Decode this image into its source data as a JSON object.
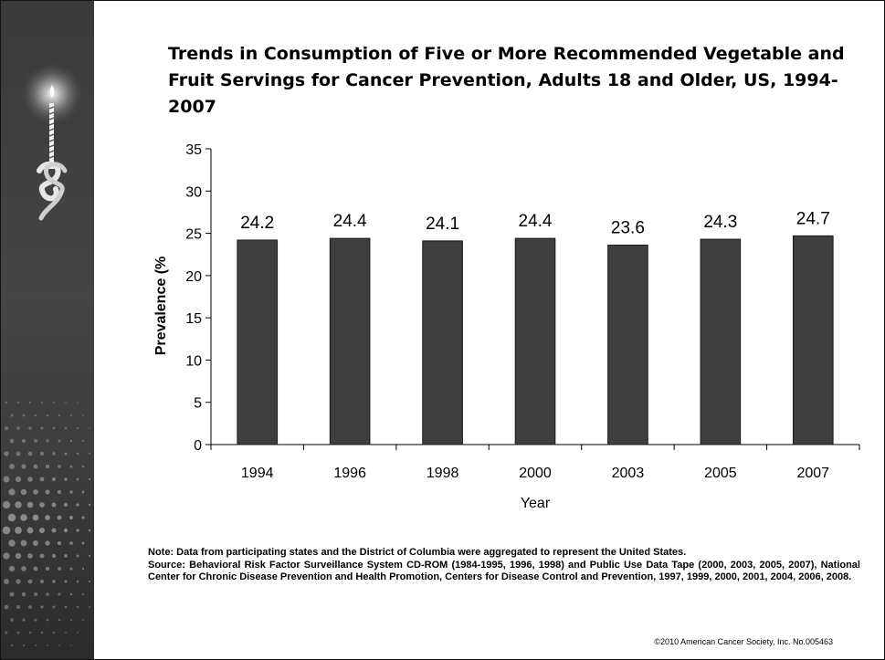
{
  "slide": {
    "title": "Trends in Consumption of Five or More Recommended Vegetable and Fruit Servings for Cancer Prevention, Adults 18 and Older, US, 1994-2007",
    "note": "Note: Data from participating states and the District of Columbia were aggregated to represent the United States.",
    "source": "Source: Behavioral Risk Factor Surveillance System CD-ROM (1984-1995, 1996, 1998) and Public Use Data Tape (2000, 2003, 2005, 2007), National Center for Chronic Disease Prevention and Health Promotion, Centers for Disease Control and Prevention, 1997, 1999, 2000, 2001, 2004, 2006, 2008.",
    "copyright": "©2010 American Cancer Society, Inc. No.005463",
    "logo_icon": "candle-ribbon-logo-icon"
  },
  "chart_data": {
    "type": "bar",
    "categories": [
      "1994",
      "1996",
      "1998",
      "2000",
      "2003",
      "2005",
      "2007"
    ],
    "values": [
      24.2,
      24.4,
      24.1,
      24.4,
      23.6,
      24.3,
      24.7
    ],
    "data_labels": [
      "24.2",
      "24.4",
      "24.1",
      "24.4",
      "23.6",
      "24.3",
      "24.7"
    ],
    "yticks": [
      0,
      5,
      10,
      15,
      20,
      25,
      30,
      35
    ],
    "ylim": [
      0,
      35
    ],
    "xlabel": "Year",
    "ylabel": "Prevalence (%",
    "grid": false,
    "bar_color": "#3f3f3f"
  }
}
